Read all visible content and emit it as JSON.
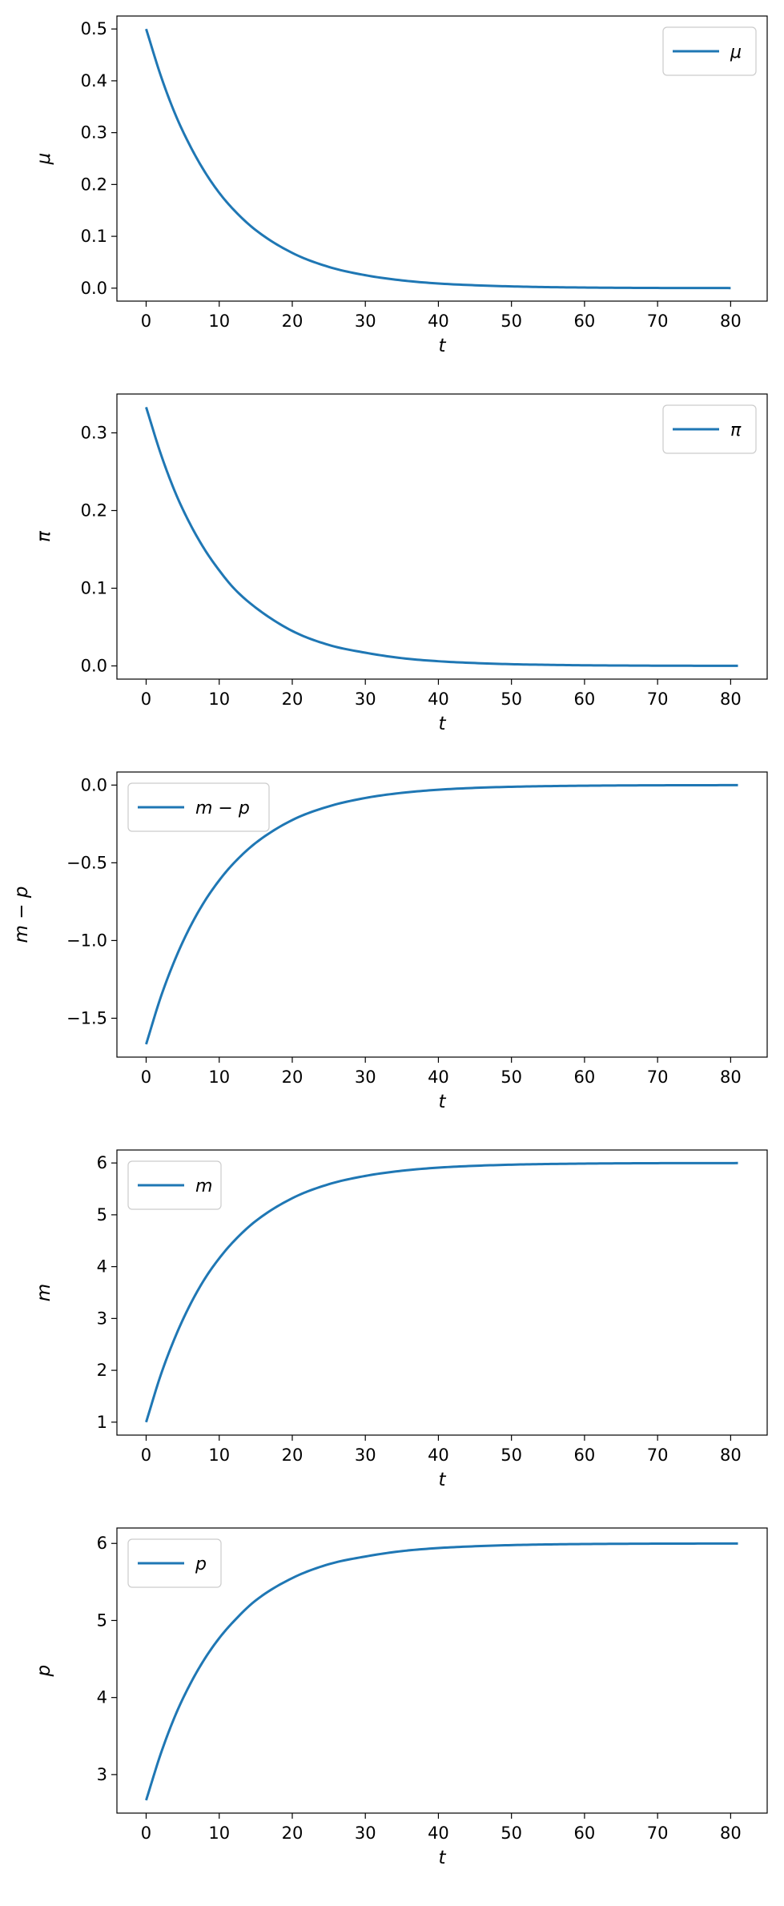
{
  "figure": {
    "background": "#ffffff",
    "line_color": "#1f77b4"
  },
  "chart_data": [
    {
      "type": "line",
      "xlabel": "t",
      "ylabel": "μ",
      "legend": "μ",
      "legend_loc": "upper right",
      "grid": false,
      "xlim": [
        -4,
        85
      ],
      "ylim": [
        -0.025,
        0.525
      ],
      "xticks": [
        0,
        10,
        20,
        30,
        40,
        50,
        60,
        70,
        80
      ],
      "yticks": [
        0.0,
        0.1,
        0.2,
        0.3,
        0.4,
        0.5
      ],
      "ytick_labels": [
        "0.0",
        "0.1",
        "0.2",
        "0.3",
        "0.4",
        "0.5"
      ],
      "x": [
        0,
        2,
        4,
        6,
        8,
        10,
        12,
        15,
        20,
        25,
        30,
        35,
        40,
        45,
        50,
        55,
        60,
        65,
        70,
        75,
        80
      ],
      "y": [
        0.5,
        0.41,
        0.335,
        0.275,
        0.225,
        0.184,
        0.151,
        0.112,
        0.068,
        0.041,
        0.025,
        0.015,
        0.009,
        0.0056,
        0.0034,
        0.002,
        0.0012,
        0.0007,
        0.0004,
        0.0003,
        0.0002
      ]
    },
    {
      "type": "line",
      "xlabel": "t",
      "ylabel": "π",
      "legend": "π",
      "legend_loc": "upper right",
      "grid": false,
      "xlim": [
        -4,
        85
      ],
      "ylim": [
        -0.017,
        0.35
      ],
      "xticks": [
        0,
        10,
        20,
        30,
        40,
        50,
        60,
        70,
        80
      ],
      "yticks": [
        0.0,
        0.1,
        0.2,
        0.3
      ],
      "ytick_labels": [
        "0.0",
        "0.1",
        "0.2",
        "0.3"
      ],
      "x": [
        0,
        2,
        4,
        6,
        8,
        10,
        12,
        15,
        20,
        25,
        30,
        35,
        40,
        45,
        50,
        55,
        60,
        65,
        70,
        75,
        81
      ],
      "y": [
        0.333,
        0.273,
        0.223,
        0.183,
        0.15,
        0.123,
        0.1,
        0.075,
        0.045,
        0.027,
        0.017,
        0.01,
        0.006,
        0.0037,
        0.0022,
        0.0014,
        0.0008,
        0.0005,
        0.0003,
        0.0002,
        0.0001
      ]
    },
    {
      "type": "line",
      "xlabel": "t",
      "ylabel": "m − p",
      "legend": "m − p",
      "legend_loc": "upper left",
      "grid": false,
      "xlim": [
        -4,
        85
      ],
      "ylim": [
        -1.75,
        0.084
      ],
      "xticks": [
        0,
        10,
        20,
        30,
        40,
        50,
        60,
        70,
        80
      ],
      "yticks": [
        -1.5,
        -1.0,
        -0.5,
        0.0
      ],
      "ytick_labels": [
        "−1.5",
        "−1.0",
        "−0.5",
        "0.0"
      ],
      "x": [
        0,
        2,
        4,
        6,
        8,
        10,
        12,
        15,
        20,
        25,
        30,
        35,
        40,
        45,
        50,
        55,
        60,
        65,
        70,
        75,
        81
      ],
      "y": [
        -1.667,
        -1.364,
        -1.117,
        -0.914,
        -0.748,
        -0.613,
        -0.502,
        -0.372,
        -0.225,
        -0.137,
        -0.083,
        -0.05,
        -0.03,
        -0.018,
        -0.011,
        -0.0068,
        -0.0041,
        -0.0025,
        -0.0015,
        -0.0009,
        -0.0005
      ]
    },
    {
      "type": "line",
      "xlabel": "t",
      "ylabel": "m",
      "legend": "m",
      "legend_loc": "upper left",
      "grid": false,
      "xlim": [
        -4,
        85
      ],
      "ylim": [
        0.75,
        6.25
      ],
      "xticks": [
        0,
        10,
        20,
        30,
        40,
        50,
        60,
        70,
        80
      ],
      "yticks": [
        1,
        2,
        3,
        4,
        5,
        6
      ],
      "ytick_labels": [
        "1",
        "2",
        "3",
        "4",
        "5",
        "6"
      ],
      "x": [
        0,
        2,
        4,
        6,
        8,
        10,
        12,
        15,
        20,
        25,
        30,
        35,
        40,
        45,
        50,
        55,
        60,
        65,
        70,
        75,
        81
      ],
      "y": [
        1.0,
        1.91,
        2.65,
        3.26,
        3.76,
        4.16,
        4.49,
        4.88,
        5.32,
        5.59,
        5.75,
        5.85,
        5.91,
        5.945,
        5.967,
        5.98,
        5.988,
        5.993,
        5.996,
        5.997,
        5.998
      ]
    },
    {
      "type": "line",
      "xlabel": "t",
      "ylabel": "p",
      "legend": "p",
      "legend_loc": "upper left",
      "grid": false,
      "xlim": [
        -4,
        85
      ],
      "ylim": [
        2.5,
        6.2
      ],
      "xticks": [
        0,
        10,
        20,
        30,
        40,
        50,
        60,
        70,
        80
      ],
      "yticks": [
        3,
        4,
        5,
        6
      ],
      "ytick_labels": [
        "3",
        "4",
        "5",
        "6"
      ],
      "x": [
        0,
        2,
        4,
        6,
        8,
        10,
        12,
        15,
        20,
        25,
        30,
        35,
        40,
        45,
        50,
        55,
        60,
        65,
        70,
        75,
        81
      ],
      "y": [
        2.667,
        3.27,
        3.77,
        4.17,
        4.5,
        4.77,
        4.99,
        5.26,
        5.55,
        5.73,
        5.83,
        5.9,
        5.94,
        5.963,
        5.978,
        5.987,
        5.992,
        5.995,
        5.997,
        5.998,
        5.999
      ]
    }
  ]
}
